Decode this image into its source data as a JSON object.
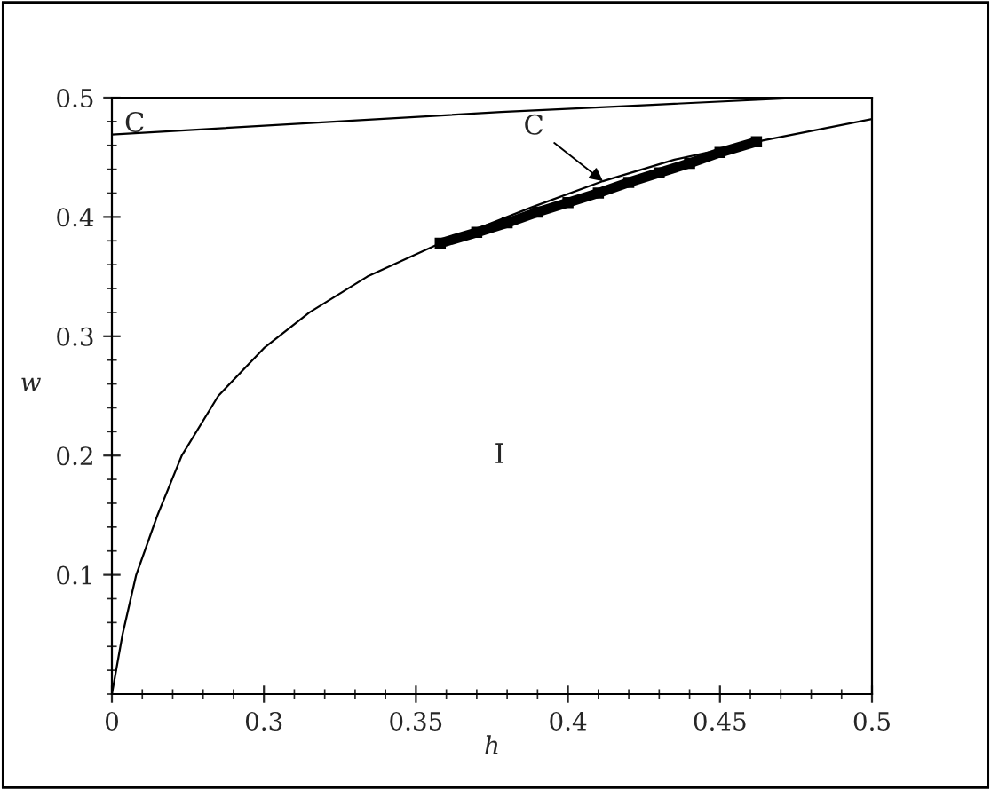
{
  "chart_data": {
    "type": "line",
    "xlabel": "h",
    "ylabel": "w",
    "series": [
      {
        "color": "#000000",
        "x": [
          0.25,
          0.2535,
          0.258,
          0.265,
          0.273,
          0.285,
          0.3,
          0.315,
          0.334,
          0.358,
          0.4,
          0.43,
          0.464,
          0.5
        ],
        "values": [
          0,
          0.05,
          0.1,
          0.15,
          0.2,
          0.25,
          0.29,
          0.32,
          0.35,
          0.378,
          0.413,
          0.437,
          0.464,
          0.482
        ]
      },
      {
        "color": "#000000",
        "x": [
          0.358,
          0.388,
          0.4115,
          0.435,
          0.462
        ],
        "values": [
          0.378,
          0.408,
          0.43,
          0.448,
          0.463
        ]
      },
      {
        "color": "#000000",
        "marker": "square",
        "x": [
          0.358,
          0.37,
          0.38,
          0.39,
          0.4,
          0.41,
          0.42,
          0.43,
          0.44,
          0.45,
          0.462
        ],
        "values": [
          0.378,
          0.387,
          0.395,
          0.404,
          0.412,
          0.42,
          0.429,
          0.437,
          0.445,
          0.454,
          0.463
        ]
      },
      {
        "color": "#000000",
        "x": [
          0.25,
          0.378,
          0.4276,
          0.4776
        ],
        "values": [
          0.469,
          0.488,
          0.494,
          0.5
        ]
      }
    ],
    "annotations": [
      "C",
      {
        "text": "C",
        "x": 0.4115,
        "y": 0.43
      },
      "I"
    ],
    "xlim": [
      0.25,
      0.5
    ],
    "xticks": [
      {
        "value": 0.25,
        "label": "0"
      },
      0.3,
      0.35,
      0.4,
      0.45,
      0.5
    ],
    "ylim": [
      0,
      0.5
    ],
    "yticks": [
      0.1,
      0.2,
      0.3,
      0.4,
      0.5
    ],
    "grid": false,
    "legend": false
  }
}
